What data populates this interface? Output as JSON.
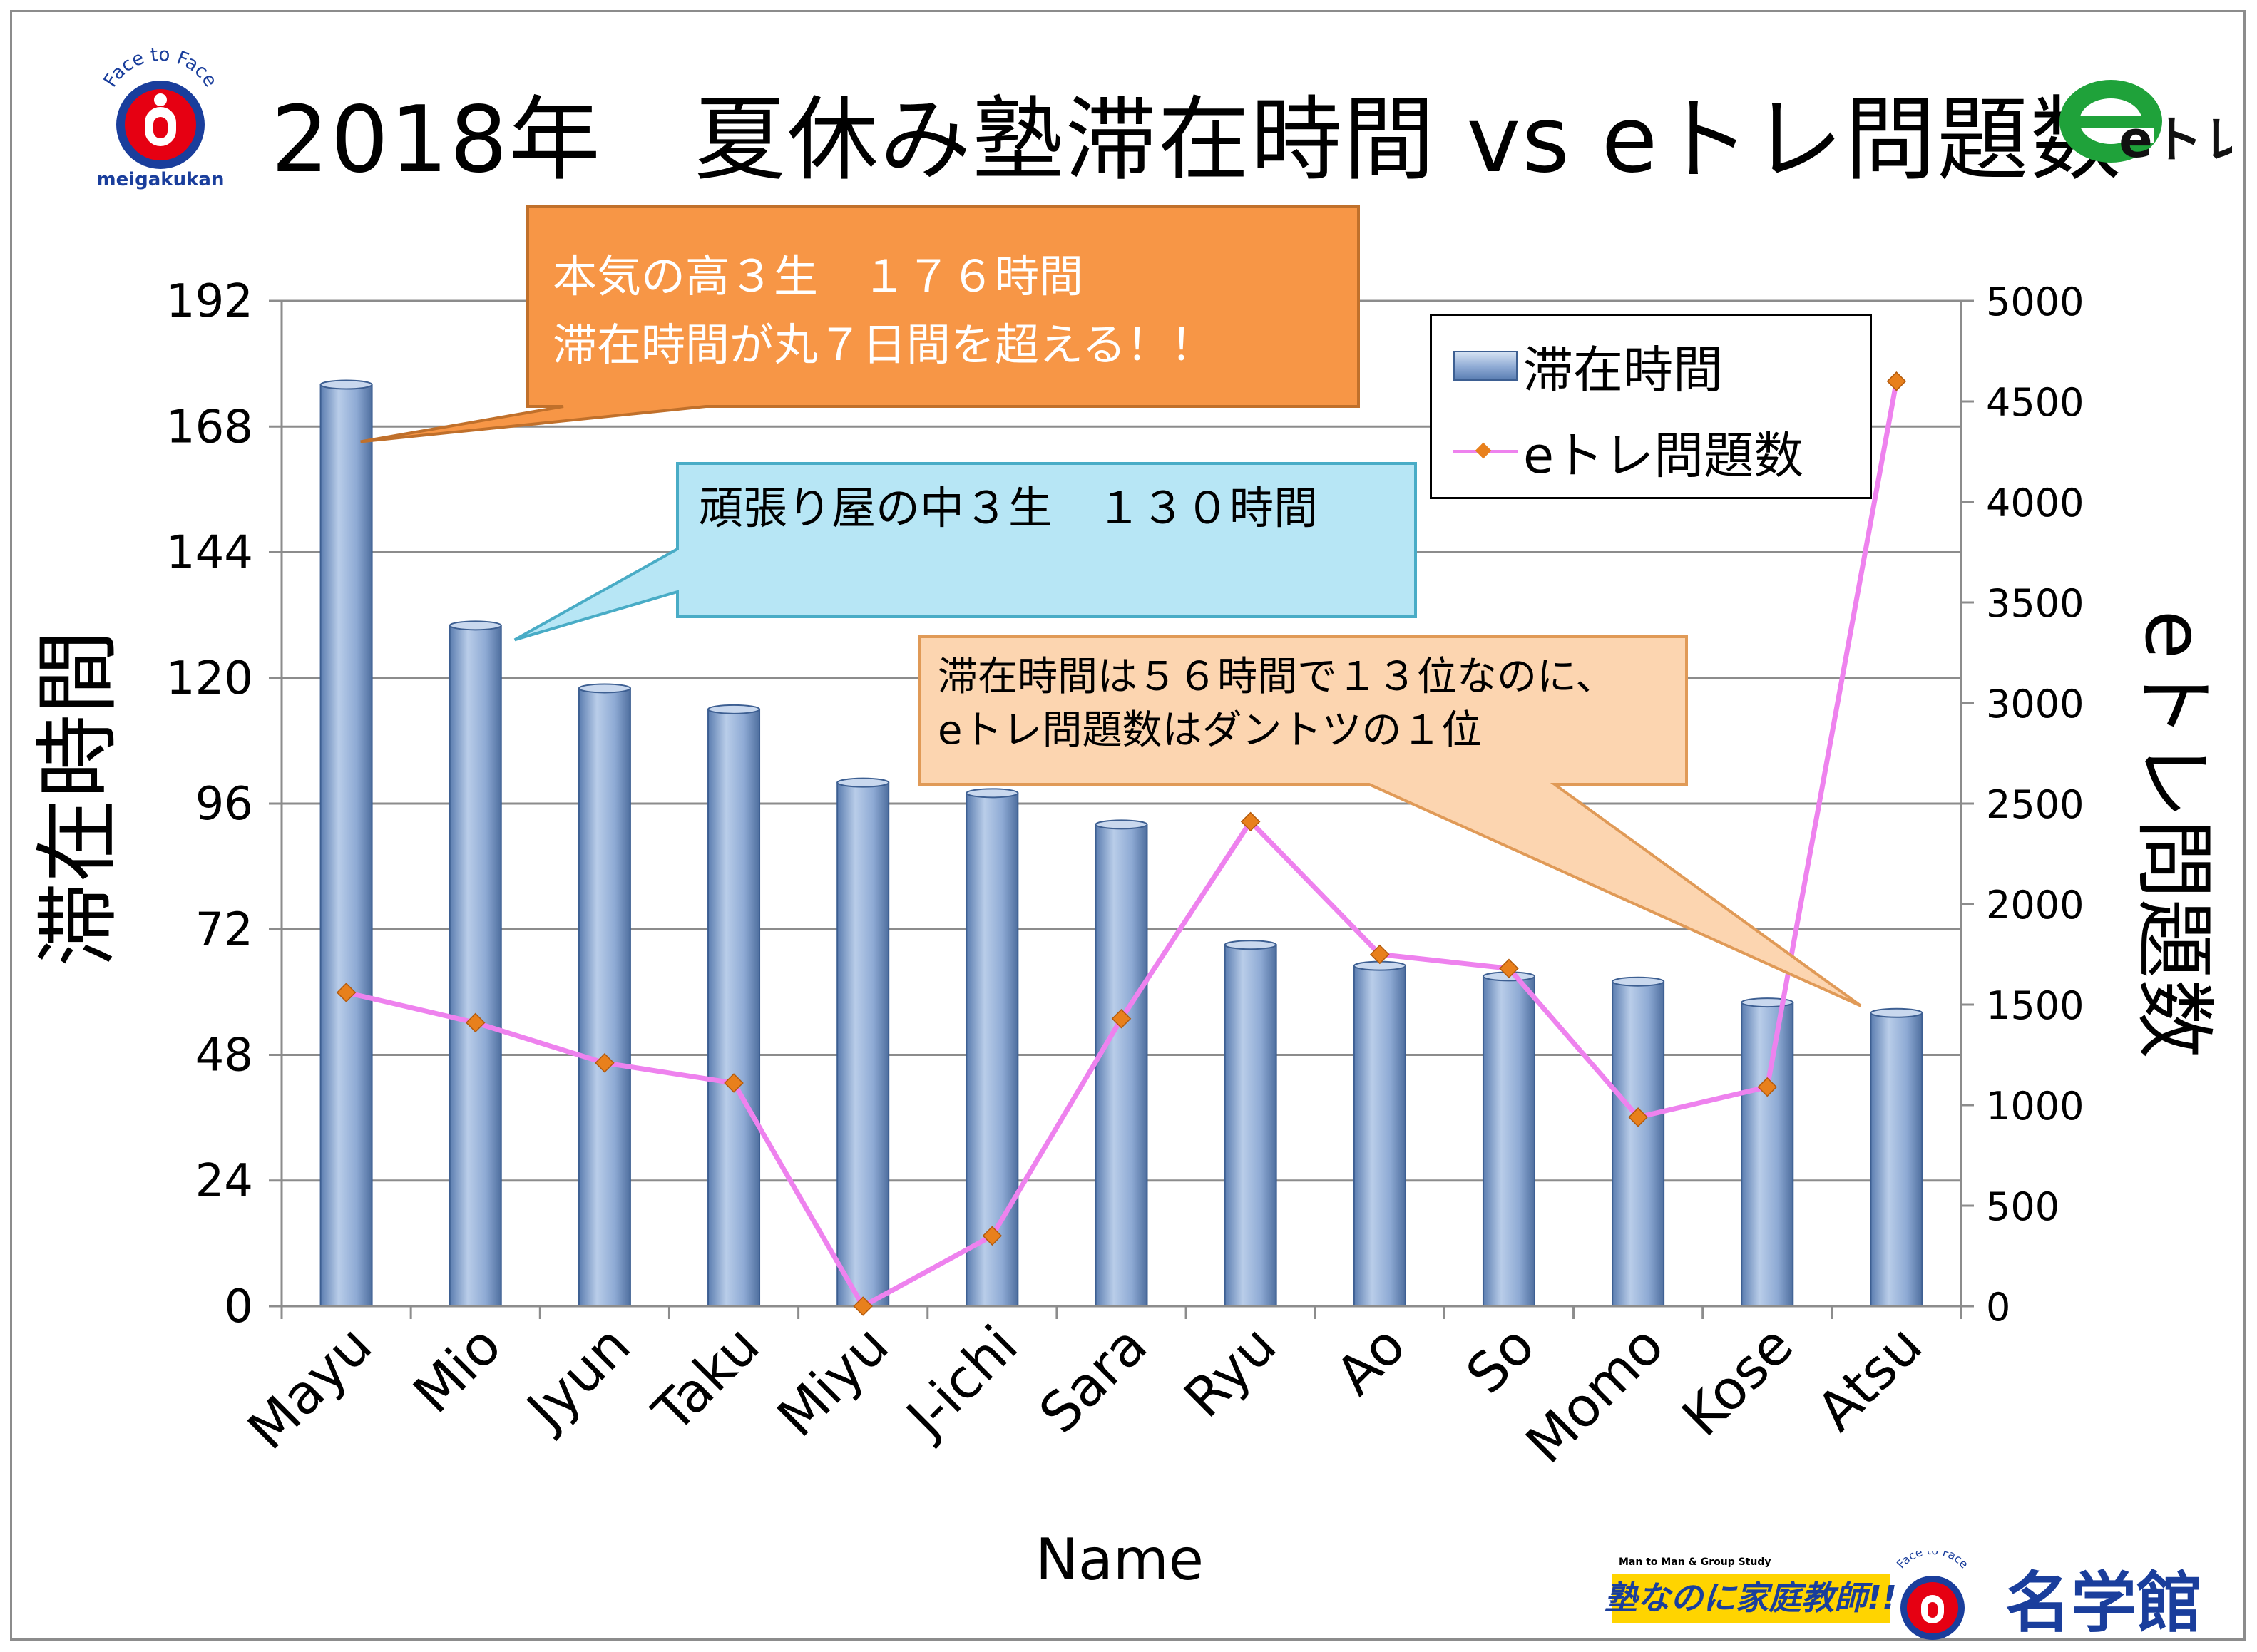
{
  "title": "2018年　夏休み塾滞在時間 vs eトレ問題数",
  "logos": {
    "top_left_arc": "Face to Face",
    "top_left_name": "meigakukan",
    "top_right": "eトレ",
    "footer_small": "Man to Man & Group Study",
    "footer_slogan": "塾なのに家庭教師!!",
    "footer_arc": "Face to Face",
    "footer_name": "名学館"
  },
  "callouts": {
    "orange": [
      "本気の高３生　１７６時間",
      "滞在時間が丸７日間を超える！！"
    ],
    "blue": [
      "頑張り屋の中３生　１３０時間"
    ],
    "peach": [
      "滞在時間は５６時間で１３位なのに、",
      "eトレ問題数はダントツの１位"
    ]
  },
  "colors": {
    "bar": "#8eaad4",
    "bar_edge": "#3d5f92",
    "line": "#ee82ee",
    "marker": "#e8801c",
    "callout_orange": "#f79646",
    "callout_blue": "#b7e6f5",
    "callout_peach": "#fcd5b0"
  },
  "chart_data": {
    "type": "bar",
    "categories": [
      "Mayu",
      "Mio",
      "Jyun",
      "Taku",
      "Miyu",
      "J-ichi",
      "Sara",
      "Ryu",
      "Ao",
      "So",
      "Momo",
      "Kose",
      "Atsu"
    ],
    "series": [
      {
        "name": "滞在時間",
        "type": "bar",
        "axis": "left",
        "values": [
          176,
          130,
          118,
          114,
          100,
          98,
          92,
          69,
          65,
          63,
          62,
          58,
          56
        ]
      },
      {
        "name": "eトレ問題数",
        "type": "line",
        "axis": "right",
        "values": [
          1560,
          1410,
          1210,
          1110,
          0,
          350,
          1430,
          2410,
          1750,
          1680,
          940,
          1090,
          4600
        ]
      }
    ],
    "xlabel": "Name",
    "ylabel": "滞在時間",
    "y2label": "eトレ問題数",
    "ylim": [
      0,
      192
    ],
    "y_ticks": [
      0,
      24,
      48,
      72,
      96,
      120,
      144,
      168,
      192
    ],
    "y2lim": [
      0,
      5000
    ],
    "y2_ticks": [
      0,
      500,
      1000,
      1500,
      2000,
      2500,
      3000,
      3500,
      4000,
      4500,
      5000
    ],
    "grid": true,
    "legend_position": "top-right"
  }
}
